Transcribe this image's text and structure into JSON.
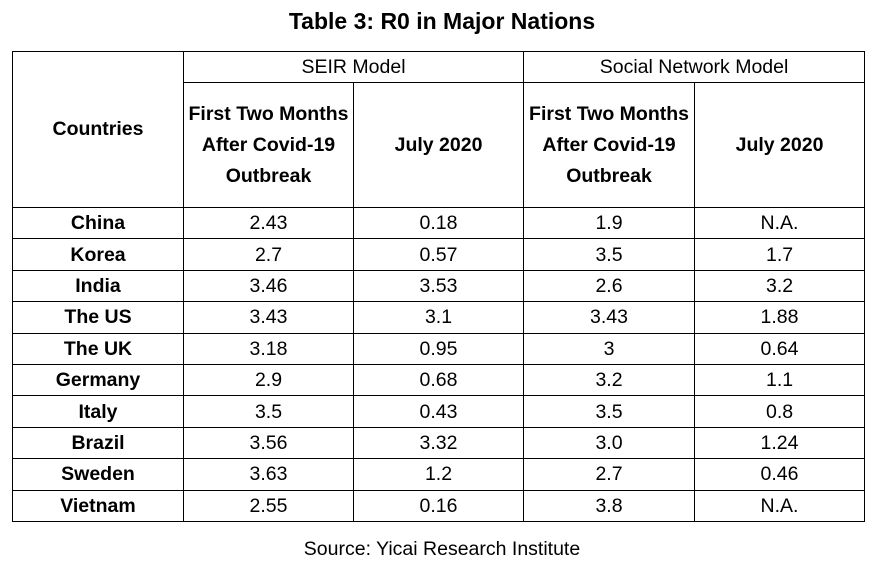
{
  "title": "Table 3: R0 in Major Nations",
  "headers": {
    "countries": "Countries",
    "seir": "SEIR Model",
    "social": "Social Network Model",
    "first_two_months": "First Two Months After Covid-19 Outbreak",
    "july_2020": "July 2020"
  },
  "rows": [
    {
      "country": "China",
      "seir_first": "2.43",
      "seir_july": "0.18",
      "sn_first": "1.9",
      "sn_july": "N.A."
    },
    {
      "country": "Korea",
      "seir_first": "2.7",
      "seir_july": "0.57",
      "sn_first": "3.5",
      "sn_july": "1.7"
    },
    {
      "country": "India",
      "seir_first": "3.46",
      "seir_july": "3.53",
      "sn_first": "2.6",
      "sn_july": "3.2"
    },
    {
      "country": "The US",
      "seir_first": "3.43",
      "seir_july": "3.1",
      "sn_first": "3.43",
      "sn_july": "1.88"
    },
    {
      "country": "The UK",
      "seir_first": "3.18",
      "seir_july": "0.95",
      "sn_first": "3",
      "sn_july": "0.64"
    },
    {
      "country": "Germany",
      "seir_first": "2.9",
      "seir_july": "0.68",
      "sn_first": "3.2",
      "sn_july": "1.1"
    },
    {
      "country": "Italy",
      "seir_first": "3.5",
      "seir_july": "0.43",
      "sn_first": "3.5",
      "sn_july": "0.8"
    },
    {
      "country": "Brazil",
      "seir_first": "3.56",
      "seir_july": "3.32",
      "sn_first": "3.0",
      "sn_july": "1.24"
    },
    {
      "country": "Sweden",
      "seir_first": "3.63",
      "seir_july": "1.2",
      "sn_first": "2.7",
      "sn_july": "0.46"
    },
    {
      "country": "Vietnam",
      "seir_first": "2.55",
      "seir_july": "0.16",
      "sn_first": "3.8",
      "sn_july": "N.A."
    }
  ],
  "source": "Source: Yicai Research Institute"
}
